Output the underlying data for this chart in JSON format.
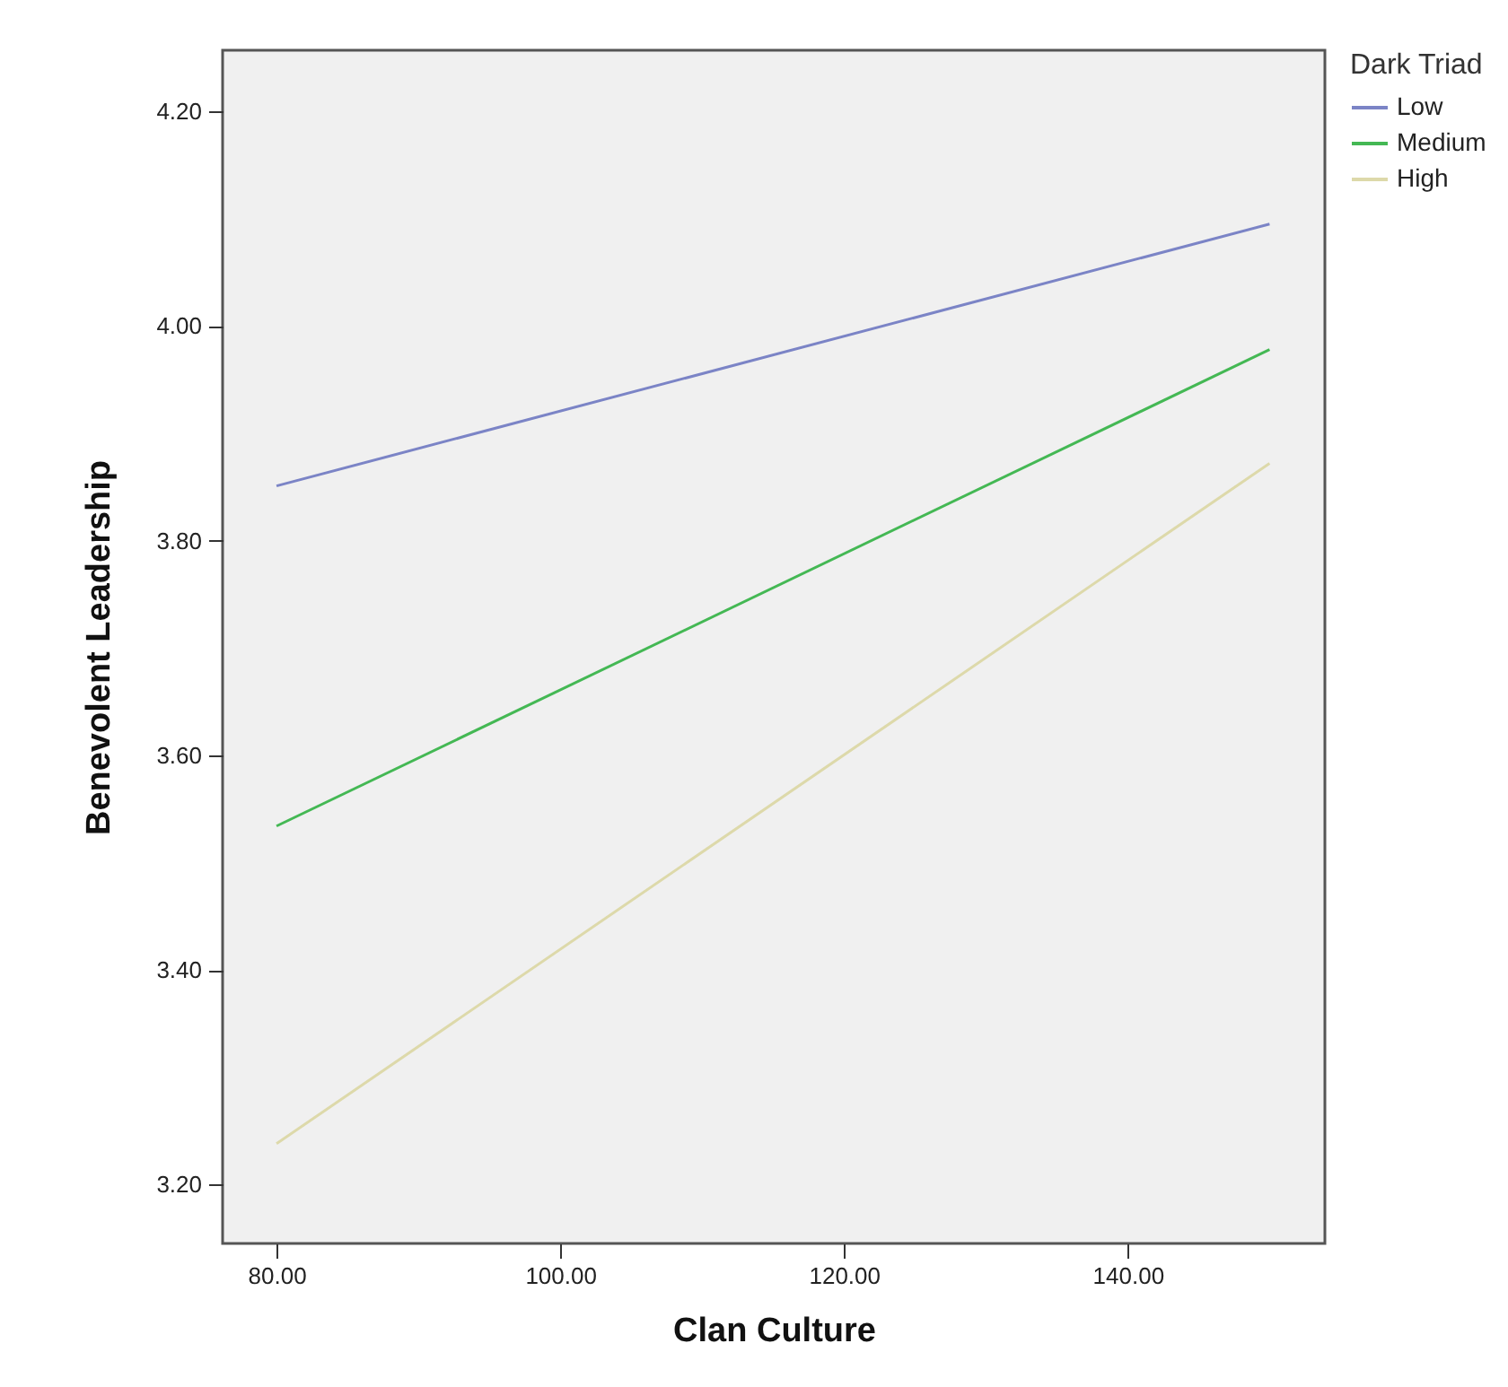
{
  "chart_data": {
    "type": "line",
    "xlabel": "Clan Culture",
    "ylabel": "Benevolent Leadership",
    "legend_title": "Dark Triad",
    "x": [
      80,
      150
    ],
    "series": [
      {
        "name": "Low",
        "color": "#7b84c6",
        "values": [
          3.851,
          4.095
        ]
      },
      {
        "name": "Medium",
        "color": "#44b854",
        "values": [
          3.534,
          3.978
        ]
      },
      {
        "name": "High",
        "color": "#ddd9aa",
        "values": [
          3.238,
          3.872
        ]
      }
    ],
    "xlim": [
      76.2,
      153.9
    ],
    "ylim": [
      3.145,
      4.257
    ],
    "xticks": [
      {
        "value": 80,
        "label": "80.00"
      },
      {
        "value": 100,
        "label": "100.00"
      },
      {
        "value": 120,
        "label": "120.00"
      },
      {
        "value": 140,
        "label": "140.00"
      }
    ],
    "yticks": [
      {
        "value": 3.2,
        "label": "3.20"
      },
      {
        "value": 3.4,
        "label": "3.40"
      },
      {
        "value": 3.6,
        "label": "3.60"
      },
      {
        "value": 3.8,
        "label": "3.80"
      },
      {
        "value": 4.0,
        "label": "4.00"
      },
      {
        "value": 4.2,
        "label": "4.20"
      }
    ],
    "legend": "top right",
    "marker": "none",
    "line_style": "solid"
  }
}
